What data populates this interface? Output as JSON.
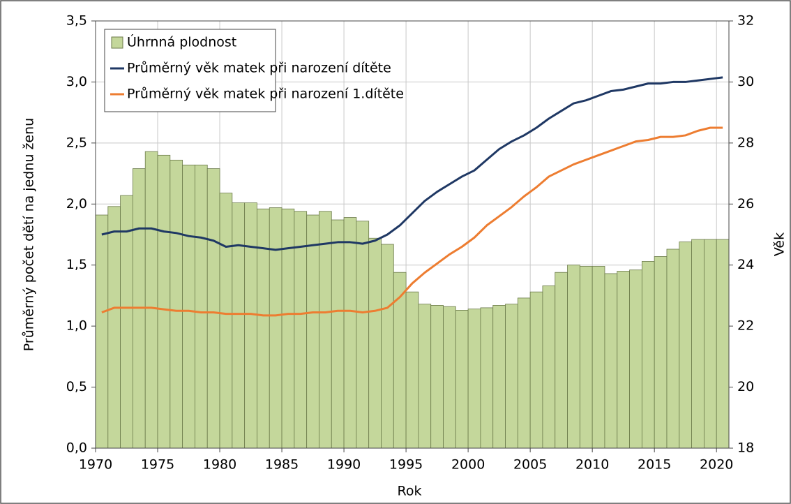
{
  "chart_data": {
    "type": "bar",
    "x": [
      1970,
      1971,
      1972,
      1973,
      1974,
      1975,
      1976,
      1977,
      1978,
      1979,
      1980,
      1981,
      1982,
      1983,
      1984,
      1985,
      1986,
      1987,
      1988,
      1989,
      1990,
      1991,
      1992,
      1993,
      1994,
      1995,
      1996,
      1997,
      1998,
      1999,
      2000,
      2001,
      2002,
      2003,
      2004,
      2005,
      2006,
      2007,
      2008,
      2009,
      2010,
      2011,
      2012,
      2013,
      2014,
      2015,
      2016,
      2017,
      2018,
      2019,
      2020
    ],
    "series": [
      {
        "name": "Úhrnná plodnost",
        "type": "bar",
        "color": "#c4d79b",
        "values": [
          1.91,
          1.98,
          2.07,
          2.29,
          2.43,
          2.4,
          2.36,
          2.32,
          2.32,
          2.29,
          2.09,
          2.01,
          2.01,
          1.96,
          1.97,
          1.96,
          1.94,
          1.91,
          1.94,
          1.87,
          1.89,
          1.86,
          1.72,
          1.67,
          1.44,
          1.28,
          1.18,
          1.17,
          1.16,
          1.13,
          1.14,
          1.15,
          1.17,
          1.18,
          1.23,
          1.28,
          1.33,
          1.44,
          1.5,
          1.49,
          1.49,
          1.43,
          1.45,
          1.46,
          1.53,
          1.57,
          1.63,
          1.69,
          1.71,
          1.71,
          1.71
        ]
      },
      {
        "name": "Průměrný věk matek při narození dítěte",
        "type": "line",
        "axis": "y2",
        "color": "#1f3864",
        "values": [
          25.0,
          25.1,
          25.1,
          25.2,
          25.2,
          25.1,
          25.05,
          24.95,
          24.9,
          24.8,
          24.6,
          24.65,
          24.6,
          24.55,
          24.5,
          24.55,
          24.6,
          24.65,
          24.7,
          24.75,
          24.75,
          24.7,
          24.8,
          25.0,
          25.3,
          25.7,
          26.1,
          26.4,
          26.65,
          26.9,
          27.1,
          27.45,
          27.8,
          28.05,
          28.25,
          28.5,
          28.8,
          29.05,
          29.3,
          29.4,
          29.55,
          29.7,
          29.75,
          29.85,
          29.95,
          29.95,
          30.0,
          30.0,
          30.05,
          30.1,
          30.15
        ]
      },
      {
        "name": "Průměrný věk matek při narození 1.dítěte",
        "type": "line",
        "axis": "y2",
        "color": "#ed7d31",
        "values": [
          22.45,
          22.6,
          22.6,
          22.6,
          22.6,
          22.55,
          22.5,
          22.5,
          22.45,
          22.45,
          22.4,
          22.4,
          22.4,
          22.35,
          22.35,
          22.4,
          22.4,
          22.45,
          22.45,
          22.5,
          22.5,
          22.45,
          22.5,
          22.6,
          22.95,
          23.4,
          23.75,
          24.05,
          24.35,
          24.6,
          24.9,
          25.3,
          25.6,
          25.9,
          26.25,
          26.55,
          26.9,
          27.1,
          27.3,
          27.45,
          27.6,
          27.75,
          27.9,
          28.05,
          28.1,
          28.2,
          28.2,
          28.25,
          28.4,
          28.5,
          28.5
        ]
      }
    ],
    "x_label": "Rok",
    "y_label": "Průměrný počet dětí na jednu ženu",
    "y2_label": "Věk",
    "xlim": [
      1970,
      2021
    ],
    "xticks": [
      1970,
      1975,
      1980,
      1985,
      1990,
      1995,
      2000,
      2005,
      2010,
      2015,
      2020
    ],
    "ylim": [
      0,
      3.5
    ],
    "yticks": [
      {
        "value": 0,
        "label": "0,0"
      },
      {
        "value": 0.5,
        "label": "0,5"
      },
      {
        "value": 1,
        "label": "1,0"
      },
      {
        "value": 1.5,
        "label": "1,5"
      },
      {
        "value": 2,
        "label": "2,0"
      },
      {
        "value": 2.5,
        "label": "2,5"
      },
      {
        "value": 3,
        "label": "3,0"
      },
      {
        "value": 3.5,
        "label": "3,5"
      }
    ],
    "y2lim": [
      18,
      32
    ],
    "y2ticks": [
      18,
      20,
      22,
      24,
      26,
      28,
      30,
      32
    ],
    "grid": true,
    "legend": "top-left"
  }
}
